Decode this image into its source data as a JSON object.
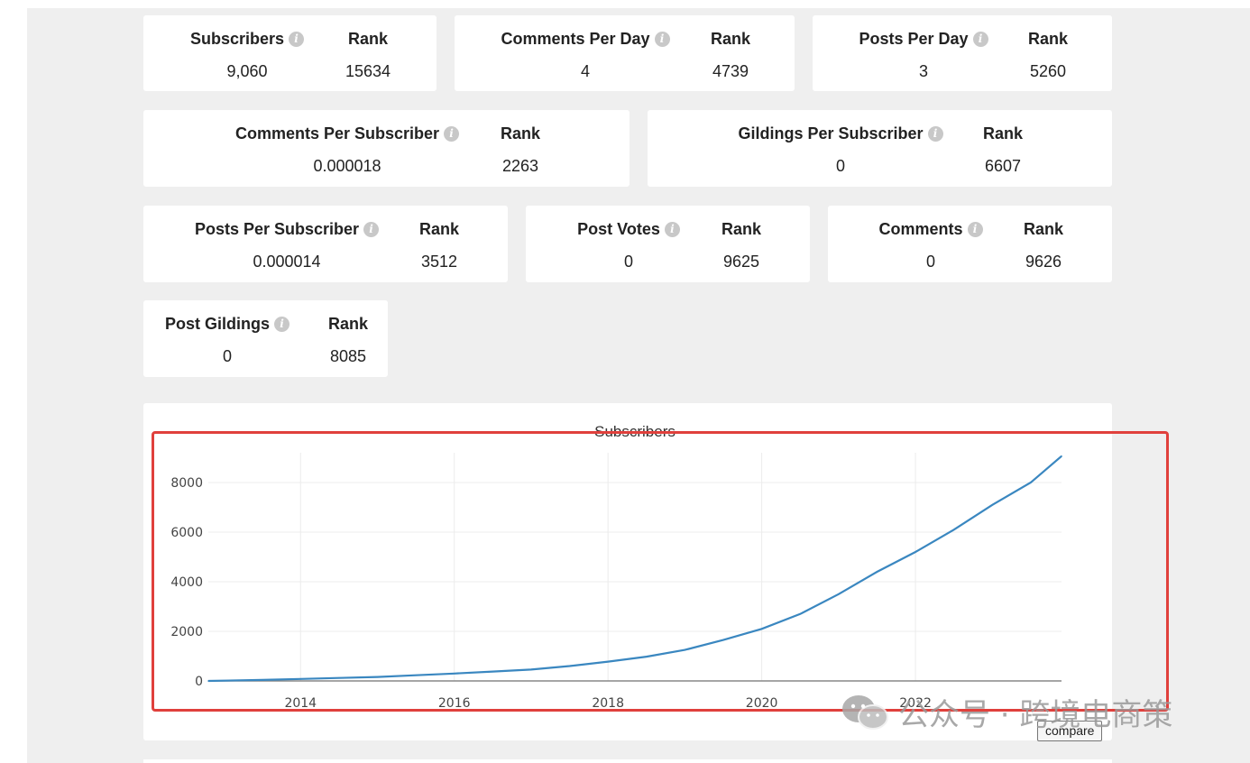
{
  "stats": [
    {
      "label": "Subscribers",
      "value": "9,060",
      "rank_label": "Rank",
      "rank": "15634"
    },
    {
      "label": "Comments Per Day",
      "value": "4",
      "rank_label": "Rank",
      "rank": "4739"
    },
    {
      "label": "Posts Per Day",
      "value": "3",
      "rank_label": "Rank",
      "rank": "5260"
    },
    {
      "label": "Comments Per Subscriber",
      "value": "0.000018",
      "rank_label": "Rank",
      "rank": "2263"
    },
    {
      "label": "Gildings Per Subscriber",
      "value": "0",
      "rank_label": "Rank",
      "rank": "6607"
    },
    {
      "label": "Posts Per Subscriber",
      "value": "0.000014",
      "rank_label": "Rank",
      "rank": "3512"
    },
    {
      "label": "Post Votes",
      "value": "0",
      "rank_label": "Rank",
      "rank": "9625"
    },
    {
      "label": "Comments",
      "value": "0",
      "rank_label": "Rank",
      "rank": "9626"
    },
    {
      "label": "Post Gildings",
      "value": "0",
      "rank_label": "Rank",
      "rank": "8085"
    }
  ],
  "info_icon": {
    "name": "info-icon",
    "glyph": "i"
  },
  "chart_data": {
    "type": "line",
    "title": "Subscribers",
    "xlabel": "",
    "ylabel": "",
    "xlim": [
      2012.8,
      2023.9
    ],
    "ylim": [
      0,
      9200
    ],
    "x_ticks": [
      "2014",
      "2016",
      "2018",
      "2020",
      "2022"
    ],
    "y_ticks": [
      "0",
      "2000",
      "4000",
      "6000",
      "8000"
    ],
    "grid": true,
    "line_color": "#3a87c0",
    "series": [
      {
        "x": [
          2012.8,
          2013.5,
          2014.0,
          2014.5,
          2015.0,
          2015.5,
          2016.0,
          2016.5,
          2017.0,
          2017.5,
          2018.0,
          2018.5,
          2019.0,
          2019.5,
          2020.0,
          2020.5,
          2021.0,
          2021.5,
          2022.0,
          2022.5,
          2023.0,
          2023.5,
          2023.9
        ],
        "y": [
          0,
          40,
          80,
          120,
          160,
          230,
          300,
          380,
          460,
          600,
          780,
          980,
          1250,
          1650,
          2100,
          2700,
          3500,
          4400,
          5200,
          6100,
          7100,
          8000,
          9060
        ]
      }
    ]
  },
  "compare_label": "compare",
  "watermark": {
    "text": "公众号 · 跨境电商策",
    "logo": "wechat-icon"
  }
}
